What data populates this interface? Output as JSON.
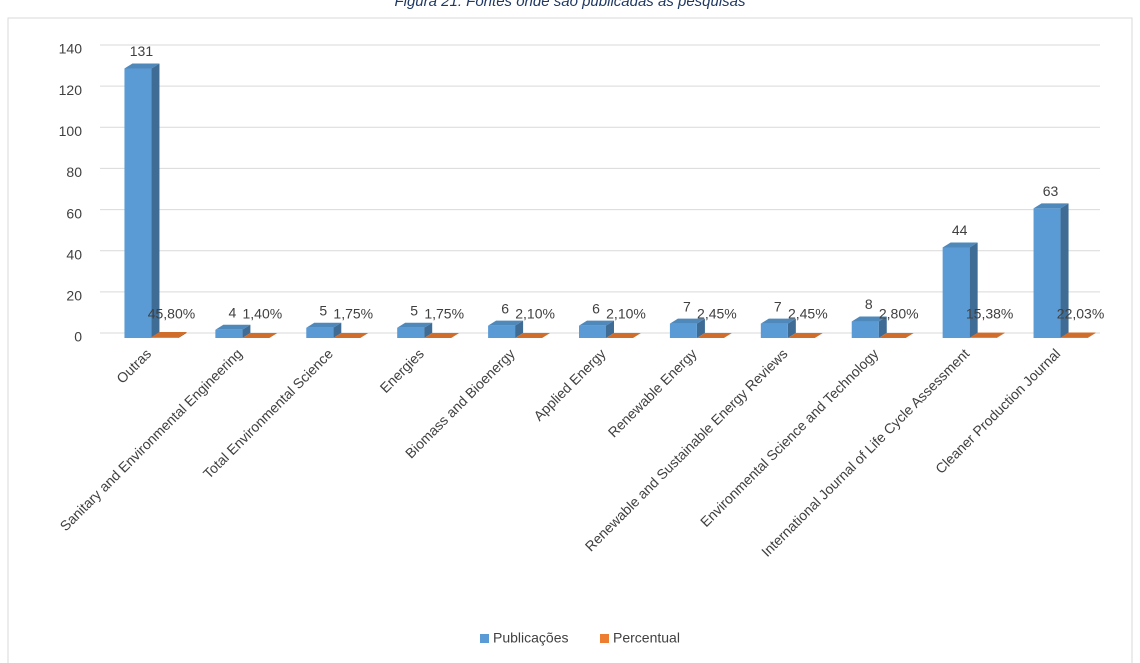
{
  "chart_data": {
    "type": "bar3d",
    "title": "Figura 21: Fontes onde são publicadas as pesquisas",
    "categories": [
      "Outras",
      "Sanitary and Environmental Engineering",
      "Total Environmental Science",
      "Energies",
      "Biomass and Bioenergy",
      "Applied Energy",
      "Renewable Energy",
      "Renewable and Sustainable Energy Reviews",
      "Environmental Science and Technology",
      "International Journal of Life Cycle Assessment",
      "Cleaner Production Journal"
    ],
    "series": [
      {
        "name": "Publicações",
        "color": "#5b9bd5",
        "values": [
          131,
          4,
          5,
          5,
          6,
          6,
          7,
          7,
          8,
          44,
          63
        ]
      },
      {
        "name": "Percentual",
        "color": "#ed7d31",
        "values": [
          0.458,
          0.014,
          0.0175,
          0.0175,
          0.021,
          0.021,
          0.0245,
          0.0245,
          0.028,
          0.1538,
          0.2203
        ],
        "value_labels": [
          "45,80%",
          "1,40%",
          "1,75%",
          "1,75%",
          "2,10%",
          "2,10%",
          "2,45%",
          "2,45%",
          "2,80%",
          "15,38%",
          "22,03%"
        ]
      }
    ],
    "ylim": [
      0,
      140
    ],
    "yticks": [
      0,
      20,
      40,
      60,
      80,
      100,
      120,
      140
    ],
    "grid": true,
    "legend": "bottom"
  }
}
